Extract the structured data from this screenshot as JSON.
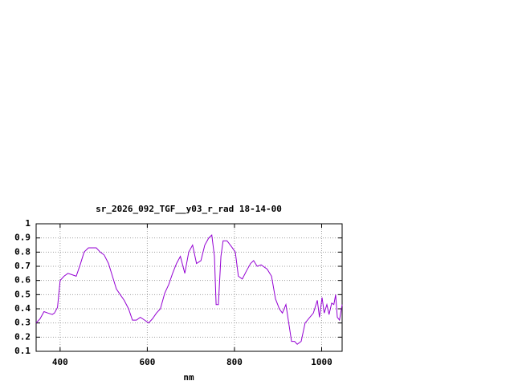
{
  "chart_data": {
    "type": "line",
    "title": "sr_2026_092_TGF__y03_r_rad 18-14-00",
    "x_label": "nm",
    "color": "#9400d3",
    "grid": true,
    "xlim": [
      345,
      1047
    ],
    "ylim": [
      0.1,
      1
    ],
    "xticks": [
      400,
      600,
      800,
      1000
    ],
    "yticks": [
      0.1,
      0.2,
      0.3,
      0.4,
      0.5,
      0.6,
      0.7,
      0.8,
      0.9,
      1
    ],
    "x": [
      345,
      354,
      363,
      372,
      382,
      387,
      394,
      400,
      409,
      418,
      428,
      437,
      446,
      455,
      465,
      483,
      492,
      501,
      511,
      520,
      529,
      538,
      547,
      557,
      566,
      575,
      584,
      594,
      603,
      612,
      621,
      630,
      640,
      649,
      658,
      667,
      676,
      686,
      695,
      704,
      713,
      723,
      732,
      741,
      748,
      754,
      758,
      763,
      769,
      774,
      783,
      793,
      802,
      809,
      818,
      828,
      837,
      844,
      852,
      861,
      875,
      885,
      894,
      903,
      910,
      918,
      925,
      931,
      938,
      944,
      953,
      962,
      973,
      981,
      990,
      995,
      1001,
      1006,
      1012,
      1017,
      1023,
      1028,
      1032,
      1036,
      1041,
      1047
    ],
    "values": [
      0.3,
      0.33,
      0.38,
      0.37,
      0.36,
      0.37,
      0.41,
      0.6,
      0.63,
      0.65,
      0.64,
      0.63,
      0.71,
      0.8,
      0.83,
      0.83,
      0.8,
      0.78,
      0.72,
      0.63,
      0.54,
      0.5,
      0.46,
      0.4,
      0.32,
      0.32,
      0.34,
      0.32,
      0.3,
      0.33,
      0.37,
      0.4,
      0.51,
      0.57,
      0.65,
      0.72,
      0.77,
      0.65,
      0.8,
      0.85,
      0.72,
      0.74,
      0.85,
      0.9,
      0.92,
      0.77,
      0.43,
      0.43,
      0.77,
      0.88,
      0.88,
      0.84,
      0.8,
      0.63,
      0.61,
      0.67,
      0.72,
      0.74,
      0.7,
      0.71,
      0.68,
      0.63,
      0.47,
      0.4,
      0.37,
      0.43,
      0.29,
      0.17,
      0.17,
      0.15,
      0.17,
      0.3,
      0.34,
      0.37,
      0.46,
      0.34,
      0.48,
      0.37,
      0.43,
      0.36,
      0.44,
      0.43,
      0.5,
      0.34,
      0.32,
      0.43
    ]
  }
}
